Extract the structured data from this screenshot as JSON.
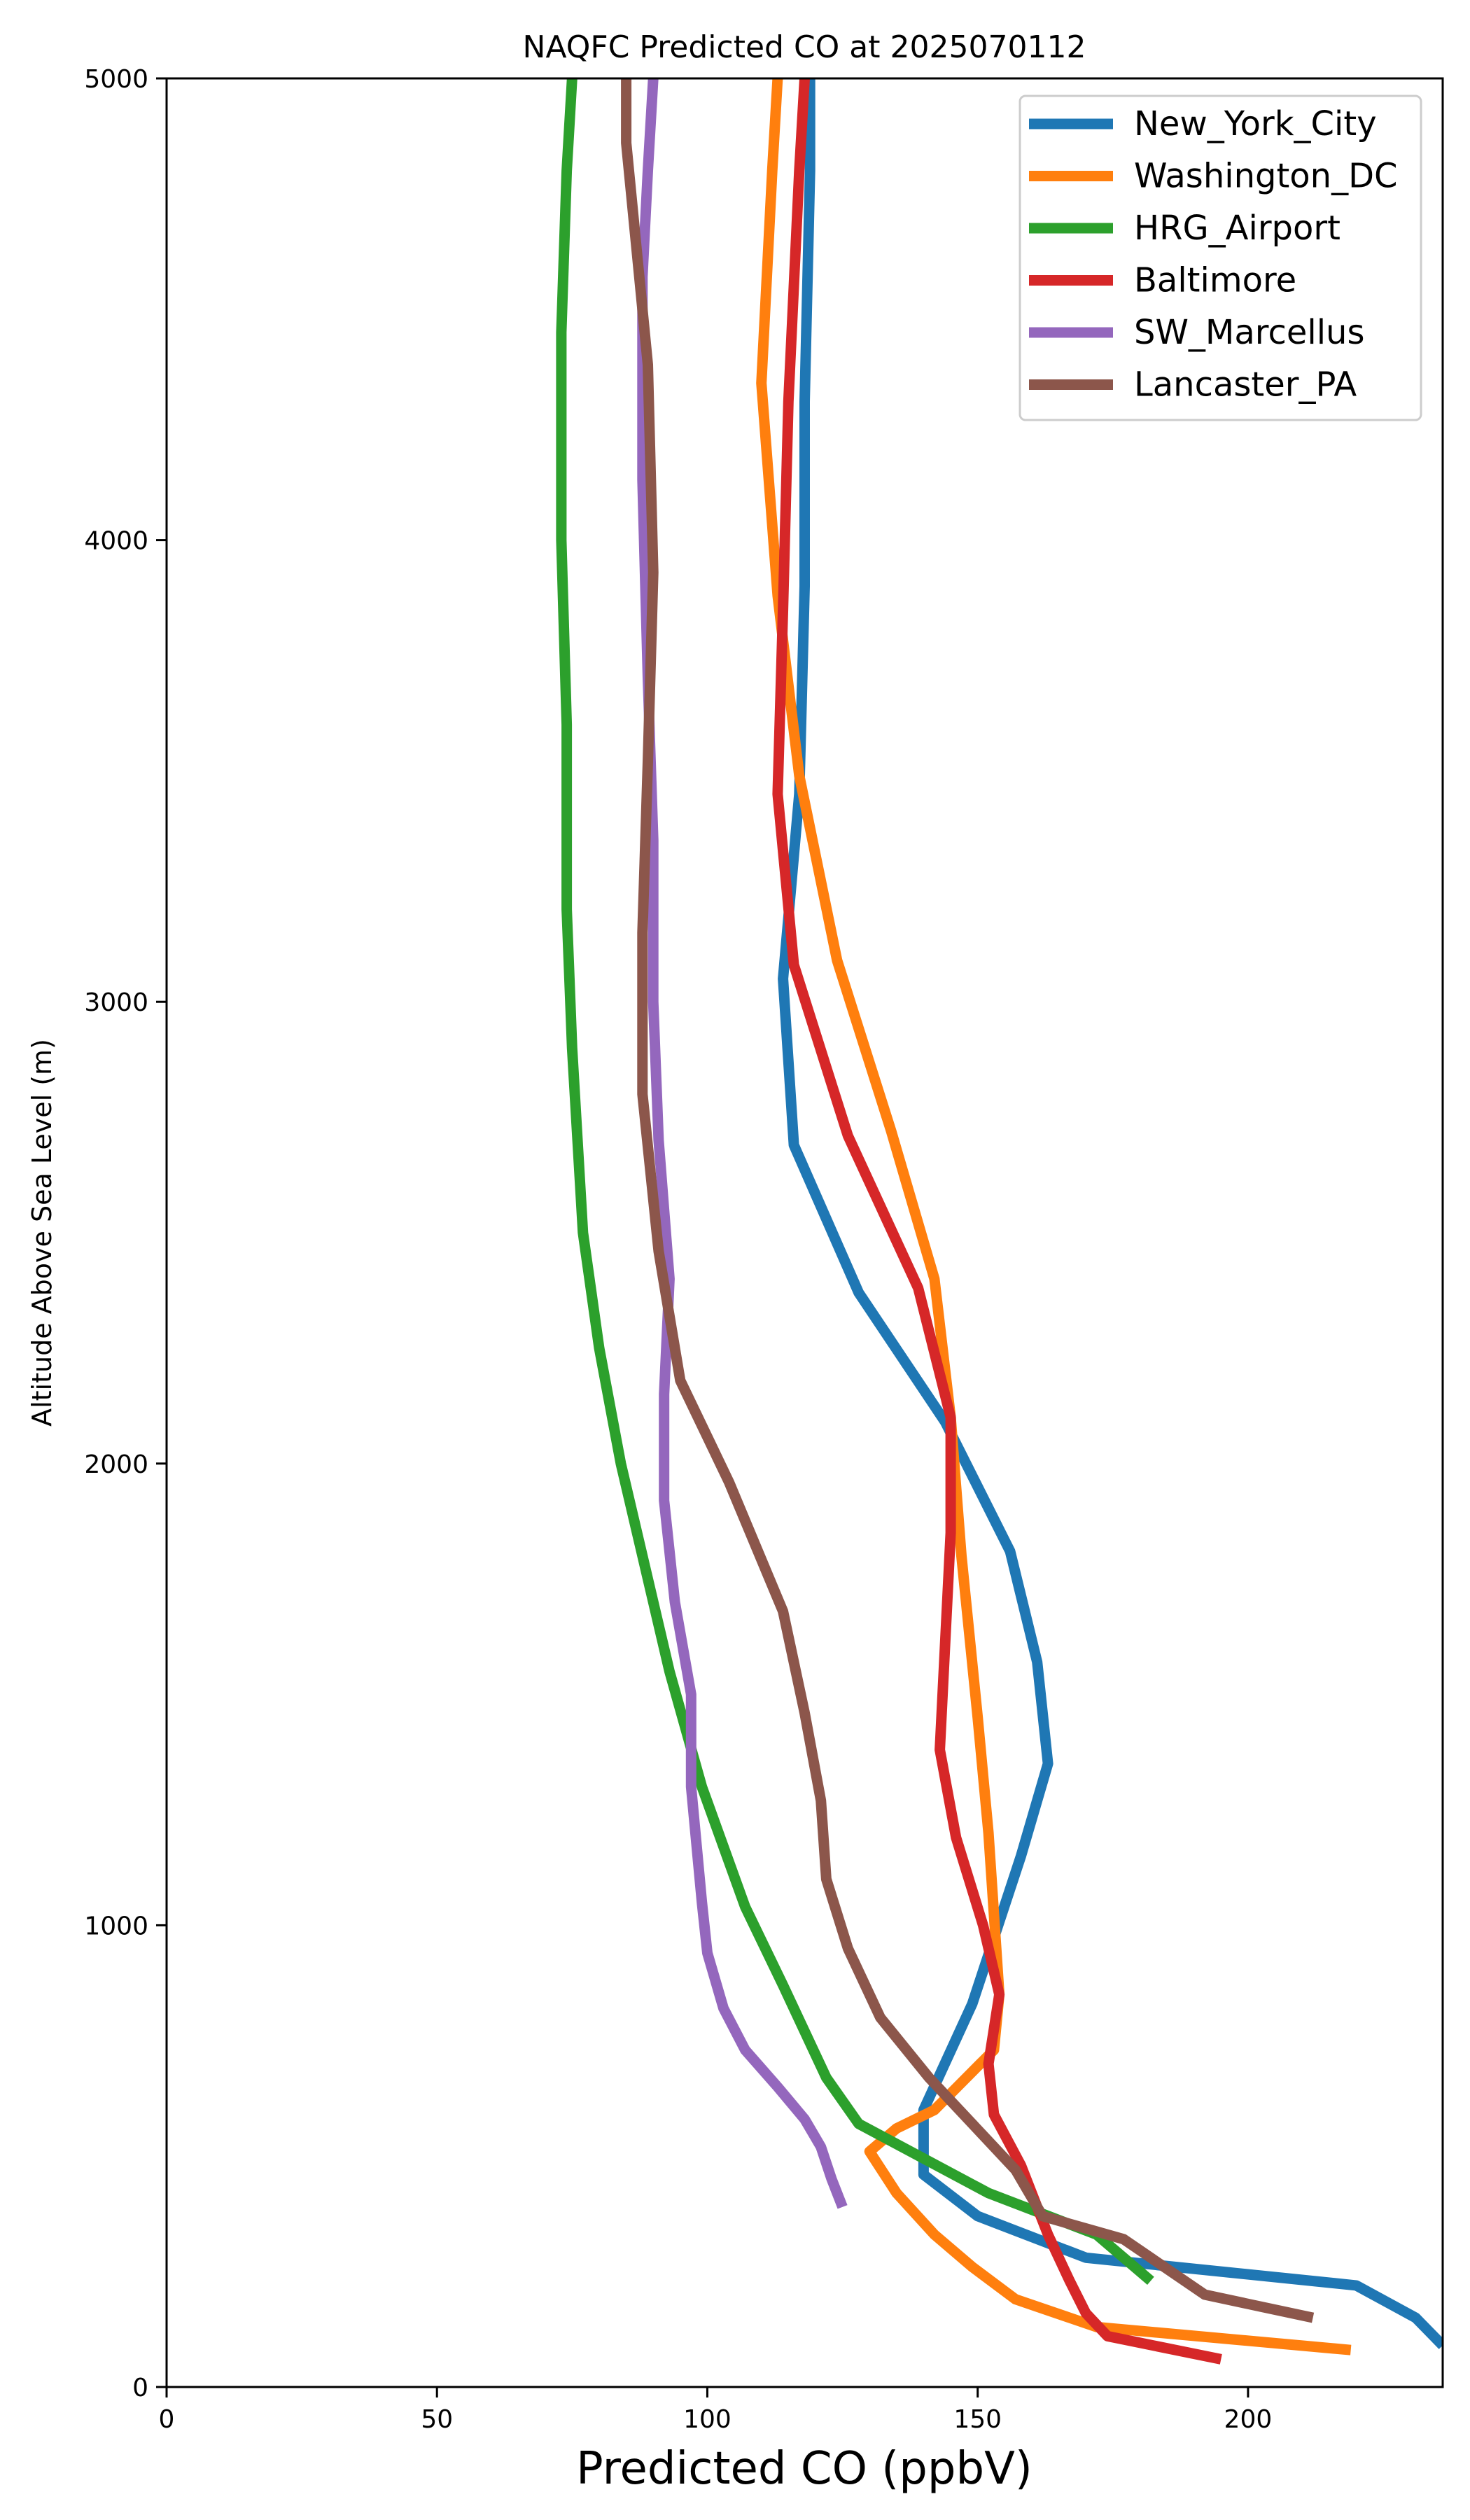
{
  "chart_data": {
    "type": "line",
    "title": "NAQFC Predicted CO at 2025070112",
    "xlabel": "Predicted CO (ppbV)",
    "ylabel": "Altitude Above Sea Level (m)",
    "xlim": [
      0,
      236
    ],
    "ylim": [
      0,
      5000
    ],
    "xticks": [
      0,
      50,
      100,
      150,
      200
    ],
    "yticks": [
      0,
      1000,
      2000,
      3000,
      4000,
      5000
    ],
    "grid": false,
    "legend_position": "top-right",
    "series": [
      {
        "name": "New_York_City",
        "color": "#1f77b4",
        "points": [
          [
            236,
            90
          ],
          [
            231,
            150
          ],
          [
            220,
            220
          ],
          [
            170,
            280
          ],
          [
            150,
            370
          ],
          [
            140,
            460
          ],
          [
            140,
            600
          ],
          [
            149,
            830
          ],
          [
            158,
            1150
          ],
          [
            163,
            1350
          ],
          [
            161,
            1570
          ],
          [
            156,
            1810
          ],
          [
            144,
            2090
          ],
          [
            128,
            2370
          ],
          [
            116,
            2690
          ],
          [
            114,
            3050
          ],
          [
            117,
            3450
          ],
          [
            118,
            3900
          ],
          [
            118,
            4300
          ],
          [
            119,
            4800
          ],
          [
            119,
            5000
          ]
        ]
      },
      {
        "name": "Washington_DC",
        "color": "#ff7f0e",
        "points": [
          [
            219,
            80
          ],
          [
            172,
            130
          ],
          [
            157,
            190
          ],
          [
            149,
            260
          ],
          [
            142,
            330
          ],
          [
            135,
            420
          ],
          [
            130,
            510
          ],
          [
            135,
            560
          ],
          [
            142,
            600
          ],
          [
            153,
            730
          ],
          [
            154,
            850
          ],
          [
            152,
            1200
          ],
          [
            150,
            1450
          ],
          [
            147,
            1800
          ],
          [
            145,
            2100
          ],
          [
            142,
            2400
          ],
          [
            134,
            2720
          ],
          [
            124,
            3090
          ],
          [
            117,
            3490
          ],
          [
            113,
            3880
          ],
          [
            110,
            4340
          ],
          [
            112,
            4800
          ],
          [
            113,
            5000
          ]
        ]
      },
      {
        "name": "HRG_Airport",
        "color": "#2ca02c",
        "points": [
          [
            182,
            230
          ],
          [
            172,
            330
          ],
          [
            152,
            420
          ],
          [
            128,
            570
          ],
          [
            122,
            670
          ],
          [
            118,
            770
          ],
          [
            114,
            870
          ],
          [
            107,
            1040
          ],
          [
            99,
            1300
          ],
          [
            93,
            1550
          ],
          [
            88,
            1800
          ],
          [
            84,
            2000
          ],
          [
            80,
            2250
          ],
          [
            77,
            2500
          ],
          [
            75,
            2900
          ],
          [
            74,
            3200
          ],
          [
            74,
            3600
          ],
          [
            73,
            4000
          ],
          [
            73,
            4450
          ],
          [
            74,
            4800
          ],
          [
            75,
            5000
          ]
        ]
      },
      {
        "name": "Baltimore",
        "color": "#d62728",
        "points": [
          [
            195,
            60
          ],
          [
            174,
            110
          ],
          [
            170,
            160
          ],
          [
            167,
            230
          ],
          [
            163,
            330
          ],
          [
            158,
            480
          ],
          [
            153,
            590
          ],
          [
            152,
            700
          ],
          [
            154,
            850
          ],
          [
            151,
            1000
          ],
          [
            146,
            1190
          ],
          [
            143,
            1380
          ],
          [
            145,
            1850
          ],
          [
            145,
            2100
          ],
          [
            139,
            2380
          ],
          [
            126,
            2710
          ],
          [
            116,
            3080
          ],
          [
            113,
            3450
          ],
          [
            114,
            3850
          ],
          [
            115,
            4300
          ],
          [
            117,
            4800
          ],
          [
            118,
            5000
          ]
        ]
      },
      {
        "name": "SW_Marcellus",
        "color": "#9467bd",
        "points": [
          [
            125,
            390
          ],
          [
            123,
            450
          ],
          [
            121,
            520
          ],
          [
            118,
            580
          ],
          [
            113,
            650
          ],
          [
            107,
            730
          ],
          [
            103,
            820
          ],
          [
            100,
            940
          ],
          [
            99,
            1050
          ],
          [
            97,
            1300
          ],
          [
            97,
            1500
          ],
          [
            94,
            1700
          ],
          [
            92,
            1920
          ],
          [
            92,
            2150
          ],
          [
            93,
            2400
          ],
          [
            91,
            2700
          ],
          [
            90,
            3000
          ],
          [
            90,
            3350
          ],
          [
            89,
            3700
          ],
          [
            88,
            4130
          ],
          [
            88,
            4570
          ],
          [
            89,
            4800
          ],
          [
            90,
            5000
          ]
        ]
      },
      {
        "name": "Lancaster_PA",
        "color": "#8c564b",
        "points": [
          [
            212,
            150
          ],
          [
            192,
            200
          ],
          [
            177,
            320
          ],
          [
            162,
            370
          ],
          [
            157,
            470
          ],
          [
            149,
            570
          ],
          [
            141,
            670
          ],
          [
            132,
            800
          ],
          [
            126,
            950
          ],
          [
            122,
            1100
          ],
          [
            121,
            1270
          ],
          [
            118,
            1460
          ],
          [
            114,
            1680
          ],
          [
            104,
            1960
          ],
          [
            95,
            2180
          ],
          [
            91,
            2460
          ],
          [
            88,
            2800
          ],
          [
            88,
            3150
          ],
          [
            89,
            3520
          ],
          [
            90,
            3930
          ],
          [
            89,
            4380
          ],
          [
            85,
            4860
          ],
          [
            85,
            5000
          ]
        ]
      }
    ]
  }
}
